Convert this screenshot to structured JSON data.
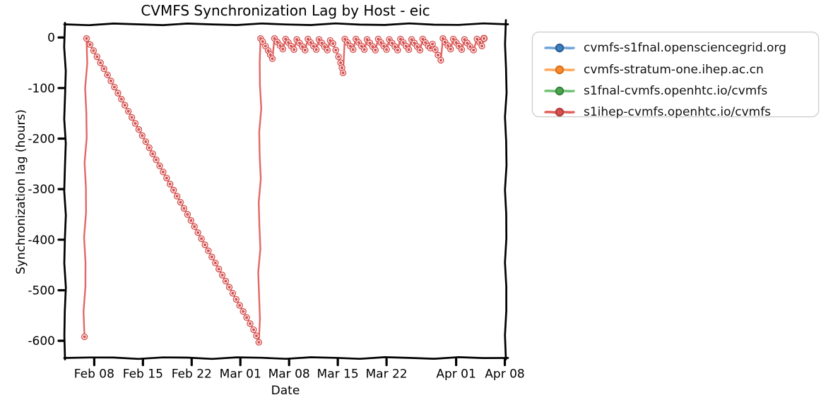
{
  "figure_title": "CVMFS Synchronization Lag by Host - eic",
  "style": {
    "look": "xkcd-sketch",
    "background": "#ffffff",
    "axis_color": "#000000",
    "tick_label_color": "#000000",
    "legend_border_color": "#c9c9c9",
    "legend_text_color": "#111111"
  },
  "chart_data": {
    "type": "line",
    "title": "CVMFS Synchronization Lag by Host - eic",
    "xlabel": "Date",
    "ylabel": "Synchronization lag (hours)",
    "grid": false,
    "legend_position": "outside-right-top",
    "x_units": "days since Feb 01",
    "x_domain_days": [
      2.8,
      66.15
    ],
    "y_domain": [
      -634,
      26
    ],
    "x_ticks": [
      {
        "day": 7,
        "label": "Feb 08"
      },
      {
        "day": 14,
        "label": "Feb 15"
      },
      {
        "day": 21,
        "label": "Feb 22"
      },
      {
        "day": 28,
        "label": "Mar 01"
      },
      {
        "day": 35,
        "label": "Mar 08"
      },
      {
        "day": 42,
        "label": "Mar 15"
      },
      {
        "day": 49,
        "label": "Mar 22"
      },
      {
        "day": 59,
        "label": "Apr 01"
      },
      {
        "day": 66,
        "label": "Apr 08"
      }
    ],
    "y_ticks": [
      {
        "value": 0,
        "label": "0"
      },
      {
        "value": -100,
        "label": "-100"
      },
      {
        "value": -200,
        "label": "-200"
      },
      {
        "value": -300,
        "label": "-300"
      },
      {
        "value": -400,
        "label": "-400"
      },
      {
        "value": -500,
        "label": "-500"
      },
      {
        "value": -600,
        "label": "-600"
      }
    ],
    "series": [
      {
        "name": "cvmfs-s1fnal.opensciencegrid.org",
        "line_color": "#6fa3d8",
        "marker_color": "#3d7ebc",
        "marker_edge": "#2a5d94",
        "points": []
      },
      {
        "name": "cvmfs-stratum-one.ihep.ac.cn",
        "line_color": "#ffa85c",
        "marker_color": "#f78a31",
        "marker_edge": "#d96d12",
        "points": []
      },
      {
        "name": "s1fnal-cvmfs.openhtc.io/cvmfs",
        "line_color": "#71c174",
        "marker_color": "#4aa34d",
        "marker_edge": "#35803a",
        "points": []
      },
      {
        "name": "s1ihep-cvmfs.openhtc.io/cvmfs",
        "line_color": "#e0605c",
        "marker_color": "#d5504e",
        "marker_edge": "#b03a38",
        "points": [
          [
            5.6,
            -592
          ],
          [
            5.9,
            -2
          ],
          [
            6.4,
            -14
          ],
          [
            6.9,
            -26
          ],
          [
            7.4,
            -38
          ],
          [
            7.9,
            -50
          ],
          [
            8.4,
            -62
          ],
          [
            8.9,
            -74
          ],
          [
            9.4,
            -86
          ],
          [
            9.9,
            -98
          ],
          [
            10.4,
            -110
          ],
          [
            10.9,
            -122
          ],
          [
            11.4,
            -134
          ],
          [
            11.9,
            -146
          ],
          [
            12.4,
            -158
          ],
          [
            12.9,
            -170
          ],
          [
            13.4,
            -182
          ],
          [
            13.9,
            -194
          ],
          [
            14.4,
            -206
          ],
          [
            14.9,
            -218
          ],
          [
            15.4,
            -230
          ],
          [
            15.9,
            -242
          ],
          [
            16.4,
            -254
          ],
          [
            16.9,
            -266
          ],
          [
            17.4,
            -278
          ],
          [
            17.9,
            -290
          ],
          [
            18.4,
            -302
          ],
          [
            18.9,
            -314
          ],
          [
            19.4,
            -326
          ],
          [
            19.9,
            -338
          ],
          [
            20.4,
            -350
          ],
          [
            20.9,
            -362
          ],
          [
            21.4,
            -374
          ],
          [
            21.9,
            -386
          ],
          [
            22.4,
            -398
          ],
          [
            22.9,
            -410
          ],
          [
            23.4,
            -422
          ],
          [
            23.9,
            -434
          ],
          [
            24.4,
            -446
          ],
          [
            24.9,
            -458
          ],
          [
            25.4,
            -470
          ],
          [
            25.9,
            -482
          ],
          [
            26.4,
            -494
          ],
          [
            26.9,
            -506
          ],
          [
            27.4,
            -518
          ],
          [
            27.9,
            -530
          ],
          [
            28.4,
            -542
          ],
          [
            28.9,
            -554
          ],
          [
            29.4,
            -566
          ],
          [
            29.9,
            -578
          ],
          [
            30.3,
            -590
          ],
          [
            30.65,
            -603
          ],
          [
            30.9,
            -2
          ],
          [
            31.2,
            -8
          ],
          [
            31.6,
            -17
          ],
          [
            32.0,
            -26
          ],
          [
            32.3,
            -34
          ],
          [
            32.6,
            -42
          ],
          [
            32.9,
            -2
          ],
          [
            33.3,
            -9
          ],
          [
            33.7,
            -16
          ],
          [
            34.1,
            -23
          ],
          [
            34.5,
            -3
          ],
          [
            34.9,
            -10
          ],
          [
            35.3,
            -17
          ],
          [
            35.7,
            -24
          ],
          [
            36.1,
            -4
          ],
          [
            36.5,
            -11
          ],
          [
            36.9,
            -18
          ],
          [
            37.3,
            -25
          ],
          [
            37.7,
            -3
          ],
          [
            38.1,
            -10
          ],
          [
            38.5,
            -17
          ],
          [
            38.9,
            -24
          ],
          [
            39.3,
            -4
          ],
          [
            39.7,
            -11
          ],
          [
            40.1,
            -18
          ],
          [
            40.5,
            -25
          ],
          [
            40.9,
            -6
          ],
          [
            41.3,
            -12
          ],
          [
            41.7,
            -25
          ],
          [
            42.1,
            -38
          ],
          [
            42.4,
            -50
          ],
          [
            42.6,
            -60
          ],
          [
            42.75,
            -70
          ],
          [
            43.0,
            -3
          ],
          [
            43.4,
            -10
          ],
          [
            43.8,
            -17
          ],
          [
            44.2,
            -24
          ],
          [
            44.6,
            -3
          ],
          [
            45.0,
            -10
          ],
          [
            45.4,
            -17
          ],
          [
            45.8,
            -24
          ],
          [
            46.2,
            -4
          ],
          [
            46.6,
            -11
          ],
          [
            47.0,
            -18
          ],
          [
            47.4,
            -25
          ],
          [
            47.8,
            -3
          ],
          [
            48.2,
            -10
          ],
          [
            48.6,
            -17
          ],
          [
            49.0,
            -24
          ],
          [
            49.4,
            -4
          ],
          [
            49.8,
            -11
          ],
          [
            50.2,
            -18
          ],
          [
            50.6,
            -25
          ],
          [
            51.0,
            -3
          ],
          [
            51.4,
            -10
          ],
          [
            51.8,
            -17
          ],
          [
            52.2,
            -24
          ],
          [
            52.6,
            -4
          ],
          [
            53.0,
            -11
          ],
          [
            53.4,
            -18
          ],
          [
            53.8,
            -25
          ],
          [
            54.2,
            -3
          ],
          [
            54.6,
            -10
          ],
          [
            55.0,
            -17
          ],
          [
            55.3,
            -21
          ],
          [
            55.6,
            -13
          ],
          [
            56.0,
            -24
          ],
          [
            56.4,
            -35
          ],
          [
            56.8,
            -45
          ],
          [
            57.1,
            -2
          ],
          [
            57.4,
            -9
          ],
          [
            57.8,
            -16
          ],
          [
            58.2,
            -23
          ],
          [
            58.6,
            -3
          ],
          [
            59.0,
            -10
          ],
          [
            59.4,
            -17
          ],
          [
            59.8,
            -24
          ],
          [
            60.2,
            -4
          ],
          [
            60.6,
            -11
          ],
          [
            61.0,
            -18
          ],
          [
            61.5,
            -25
          ],
          [
            62.0,
            -3
          ],
          [
            62.4,
            -10
          ],
          [
            62.7,
            -17
          ],
          [
            63.0,
            -2
          ]
        ]
      }
    ]
  }
}
